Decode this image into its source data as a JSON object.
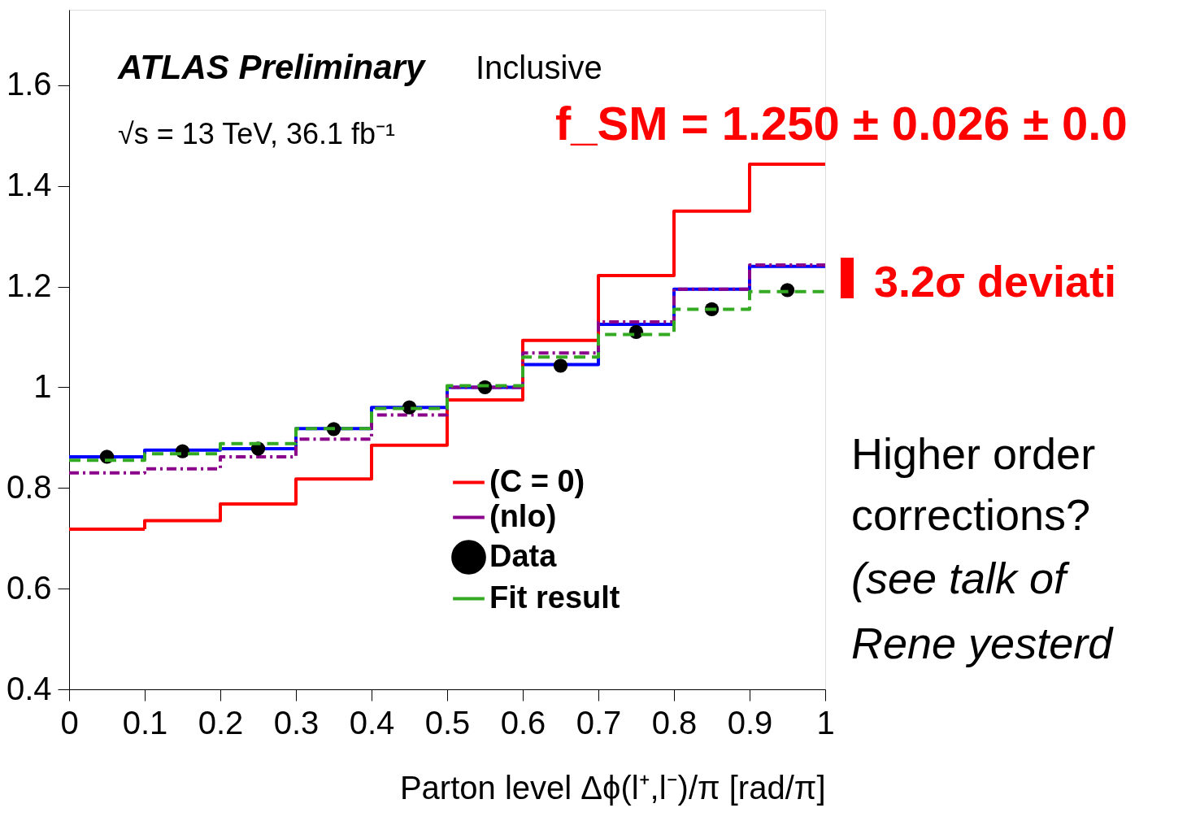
{
  "chart_data": {
    "type": "histogram",
    "xlabel": "Parton level Δϕ(l⁺,l⁻)/π [rad/π]",
    "bins": [
      0,
      0.1,
      0.2,
      0.3,
      0.4,
      0.5,
      0.6,
      0.7,
      0.8,
      0.9,
      1
    ],
    "series": [
      {
        "color": "#0000ff",
        "line_style": "solid",
        "values": [
          0.862,
          0.875,
          0.878,
          0.918,
          0.96,
          1.0,
          1.045,
          1.125,
          1.195,
          1.24
        ]
      },
      {
        "name": "(C = 0)",
        "color": "#ff0000",
        "line_style": "solid",
        "values": [
          0.718,
          0.735,
          0.768,
          0.818,
          0.885,
          0.975,
          1.093,
          1.222,
          1.35,
          1.443
        ]
      },
      {
        "name": "(nlo)",
        "color": "#8b008b",
        "line_style": "dashdot",
        "values": [
          0.83,
          0.838,
          0.862,
          0.897,
          0.945,
          1.0,
          1.068,
          1.13,
          1.195,
          1.243
        ]
      },
      {
        "name": "Data",
        "type": "scatter",
        "marker": "circle",
        "color": "#000000",
        "x": [
          0.05,
          0.15,
          0.25,
          0.35,
          0.45,
          0.55,
          0.65,
          0.75,
          0.85,
          0.95
        ],
        "values": [
          0.862,
          0.873,
          0.878,
          0.917,
          0.96,
          1.0,
          1.043,
          1.11,
          1.155,
          1.193
        ]
      },
      {
        "name": "Fit result",
        "color": "#33aa22",
        "line_style": "dashed",
        "values": [
          0.855,
          0.868,
          0.888,
          0.918,
          0.958,
          1.003,
          1.06,
          1.105,
          1.155,
          1.19
        ]
      }
    ],
    "xlim": [
      0,
      1
    ],
    "ylim": [
      0.4,
      1.75
    ],
    "xticks": [
      0,
      0.1,
      0.2,
      0.3,
      0.4,
      0.5,
      0.6,
      0.7,
      0.8,
      0.9,
      1
    ],
    "yticks": [
      0.4,
      0.6,
      0.8,
      1,
      1.2,
      1.4,
      1.6
    ],
    "grid": false,
    "legend": "bottom right",
    "annotations": [
      "ATLAS Preliminary",
      "Inclusive",
      "√s = 13 TeV, 36.1 fb⁻¹",
      "f_SM = 1.250 ± 0.026 ± 0.0",
      "3.2σ deviati",
      "Higher order",
      "corrections?",
      "(see talk of",
      "Rene yesterd"
    ]
  }
}
